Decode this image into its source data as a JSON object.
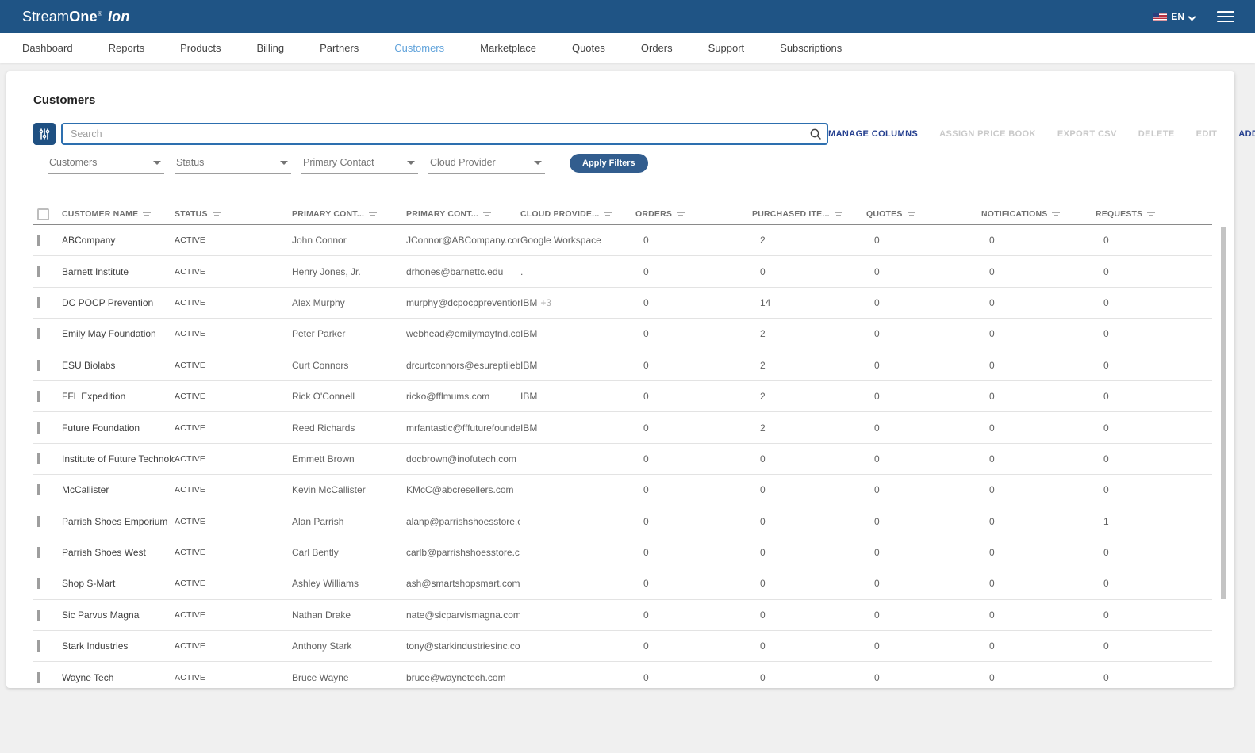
{
  "colors": {
    "header_bg": "#1f5485",
    "active_tab": "#61a3db",
    "action_enabled": "#243f8f",
    "apply_bg": "#325d8e",
    "filter_btn_bg": "#1f5082",
    "search_border": "#2d6faf"
  },
  "header": {
    "logo_stream": "Stream",
    "logo_one": "One",
    "logo_reg": "®",
    "logo_ion": "Ion",
    "language": "EN"
  },
  "nav": {
    "items": [
      {
        "label": "Dashboard",
        "active": false
      },
      {
        "label": "Reports",
        "active": false
      },
      {
        "label": "Products",
        "active": false
      },
      {
        "label": "Billing",
        "active": false
      },
      {
        "label": "Partners",
        "active": false
      },
      {
        "label": "Customers",
        "active": true
      },
      {
        "label": "Marketplace",
        "active": false
      },
      {
        "label": "Quotes",
        "active": false
      },
      {
        "label": "Orders",
        "active": false
      },
      {
        "label": "Support",
        "active": false
      },
      {
        "label": "Subscriptions",
        "active": false
      }
    ]
  },
  "page": {
    "title": "Customers"
  },
  "toolbar": {
    "search_placeholder": "Search",
    "actions": [
      {
        "label": "MANAGE COLUMNS",
        "enabled": true
      },
      {
        "label": "ASSIGN PRICE BOOK",
        "enabled": false
      },
      {
        "label": "EXPORT CSV",
        "enabled": false
      },
      {
        "label": "DELETE",
        "enabled": false
      },
      {
        "label": "EDIT",
        "enabled": false
      },
      {
        "label": "ADD",
        "enabled": true
      }
    ]
  },
  "filters": {
    "dropdowns": [
      {
        "label": "Customers"
      },
      {
        "label": "Status"
      },
      {
        "label": "Primary Contact"
      },
      {
        "label": "Cloud Provider"
      }
    ],
    "apply_label": "Apply Filters"
  },
  "table": {
    "columns": [
      {
        "label": "CUSTOMER NAME"
      },
      {
        "label": "STATUS"
      },
      {
        "label": "PRIMARY CONT..."
      },
      {
        "label": "PRIMARY CONT..."
      },
      {
        "label": "CLOUD PROVIDE..."
      },
      {
        "label": "ORDERS"
      },
      {
        "label": "PURCHASED ITE..."
      },
      {
        "label": "QUOTES"
      },
      {
        "label": "NOTIFICATIONS"
      },
      {
        "label": "REQUESTS"
      }
    ],
    "rows": [
      {
        "name": "ABCompany",
        "status": "ACTIVE",
        "contact": "John Connor",
        "email": "JConnor@ABCompany.com",
        "cloud": "Google Workspace",
        "cloud_extra": "",
        "orders": "0",
        "purchased": "2",
        "quotes": "0",
        "notifications": "0",
        "requests": "0"
      },
      {
        "name": "Barnett Institute",
        "status": "ACTIVE",
        "contact": "Henry Jones, Jr.",
        "email": "drhones@barnettc.edu",
        "cloud": ".",
        "cloud_extra": "",
        "orders": "0",
        "purchased": "0",
        "quotes": "0",
        "notifications": "0",
        "requests": "0"
      },
      {
        "name": "DC POCP Prevention",
        "status": "ACTIVE",
        "contact": "Alex Murphy",
        "email": "murphy@dcpocpprevention.com",
        "cloud": "IBM",
        "cloud_extra": "+3",
        "orders": "0",
        "purchased": "14",
        "quotes": "0",
        "notifications": "0",
        "requests": "0"
      },
      {
        "name": "Emily May Foundation",
        "status": "ACTIVE",
        "contact": "Peter Parker",
        "email": "webhead@emilymayfnd.com",
        "cloud": "IBM",
        "cloud_extra": "",
        "orders": "0",
        "purchased": "2",
        "quotes": "0",
        "notifications": "0",
        "requests": "0"
      },
      {
        "name": "ESU Biolabs",
        "status": "ACTIVE",
        "contact": "Curt Connors",
        "email": "drcurtconnors@esureptilebiola...",
        "cloud": "IBM",
        "cloud_extra": "",
        "orders": "0",
        "purchased": "2",
        "quotes": "0",
        "notifications": "0",
        "requests": "0"
      },
      {
        "name": "FFL Expedition",
        "status": "ACTIVE",
        "contact": "Rick O'Connell",
        "email": "ricko@fflmums.com",
        "cloud": "IBM",
        "cloud_extra": "",
        "orders": "0",
        "purchased": "2",
        "quotes": "0",
        "notifications": "0",
        "requests": "0"
      },
      {
        "name": "Future Foundation",
        "status": "ACTIVE",
        "contact": "Reed Richards",
        "email": "mrfantastic@fffuturefoundatio...",
        "cloud": "IBM",
        "cloud_extra": "",
        "orders": "0",
        "purchased": "2",
        "quotes": "0",
        "notifications": "0",
        "requests": "0"
      },
      {
        "name": "Institute of Future Technology",
        "status": "ACTIVE",
        "contact": "Emmett Brown",
        "email": "docbrown@inofutech.com",
        "cloud": "",
        "cloud_extra": "",
        "orders": "0",
        "purchased": "0",
        "quotes": "0",
        "notifications": "0",
        "requests": "0"
      },
      {
        "name": "McCallister",
        "status": "ACTIVE",
        "contact": "Kevin McCallister",
        "email": "KMcC@abcresellers.com",
        "cloud": "",
        "cloud_extra": "",
        "orders": "0",
        "purchased": "0",
        "quotes": "0",
        "notifications": "0",
        "requests": "0"
      },
      {
        "name": "Parrish Shoes Emporium",
        "status": "ACTIVE",
        "contact": "Alan Parrish",
        "email": "alanp@parrishshoesstore.com n",
        "cloud": "",
        "cloud_extra": "",
        "orders": "0",
        "purchased": "0",
        "quotes": "0",
        "notifications": "0",
        "requests": "1"
      },
      {
        "name": "Parrish Shoes West",
        "status": "ACTIVE",
        "contact": "Carl Bently",
        "email": "carlb@parrishshoesstore.com",
        "cloud": "",
        "cloud_extra": "",
        "orders": "0",
        "purchased": "0",
        "quotes": "0",
        "notifications": "0",
        "requests": "0"
      },
      {
        "name": "Shop S-Mart",
        "status": "ACTIVE",
        "contact": "Ashley Williams",
        "email": "ash@smartshopsmart.com",
        "cloud": "",
        "cloud_extra": "",
        "orders": "0",
        "purchased": "0",
        "quotes": "0",
        "notifications": "0",
        "requests": "0"
      },
      {
        "name": "Sic Parvus Magna",
        "status": "ACTIVE",
        "contact": "Nathan Drake",
        "email": "nate@sicparvismagna.com",
        "cloud": "",
        "cloud_extra": "",
        "orders": "0",
        "purchased": "0",
        "quotes": "0",
        "notifications": "0",
        "requests": "0"
      },
      {
        "name": "Stark Industries",
        "status": "ACTIVE",
        "contact": "Anthony Stark",
        "email": "tony@starkindustriesinc.com",
        "cloud": "",
        "cloud_extra": "",
        "orders": "0",
        "purchased": "0",
        "quotes": "0",
        "notifications": "0",
        "requests": "0"
      },
      {
        "name": "Wayne Tech",
        "status": "ACTIVE",
        "contact": "Bruce Wayne",
        "email": "bruce@waynetech.com",
        "cloud": "",
        "cloud_extra": "",
        "orders": "0",
        "purchased": "0",
        "quotes": "0",
        "notifications": "0",
        "requests": "0"
      }
    ]
  }
}
